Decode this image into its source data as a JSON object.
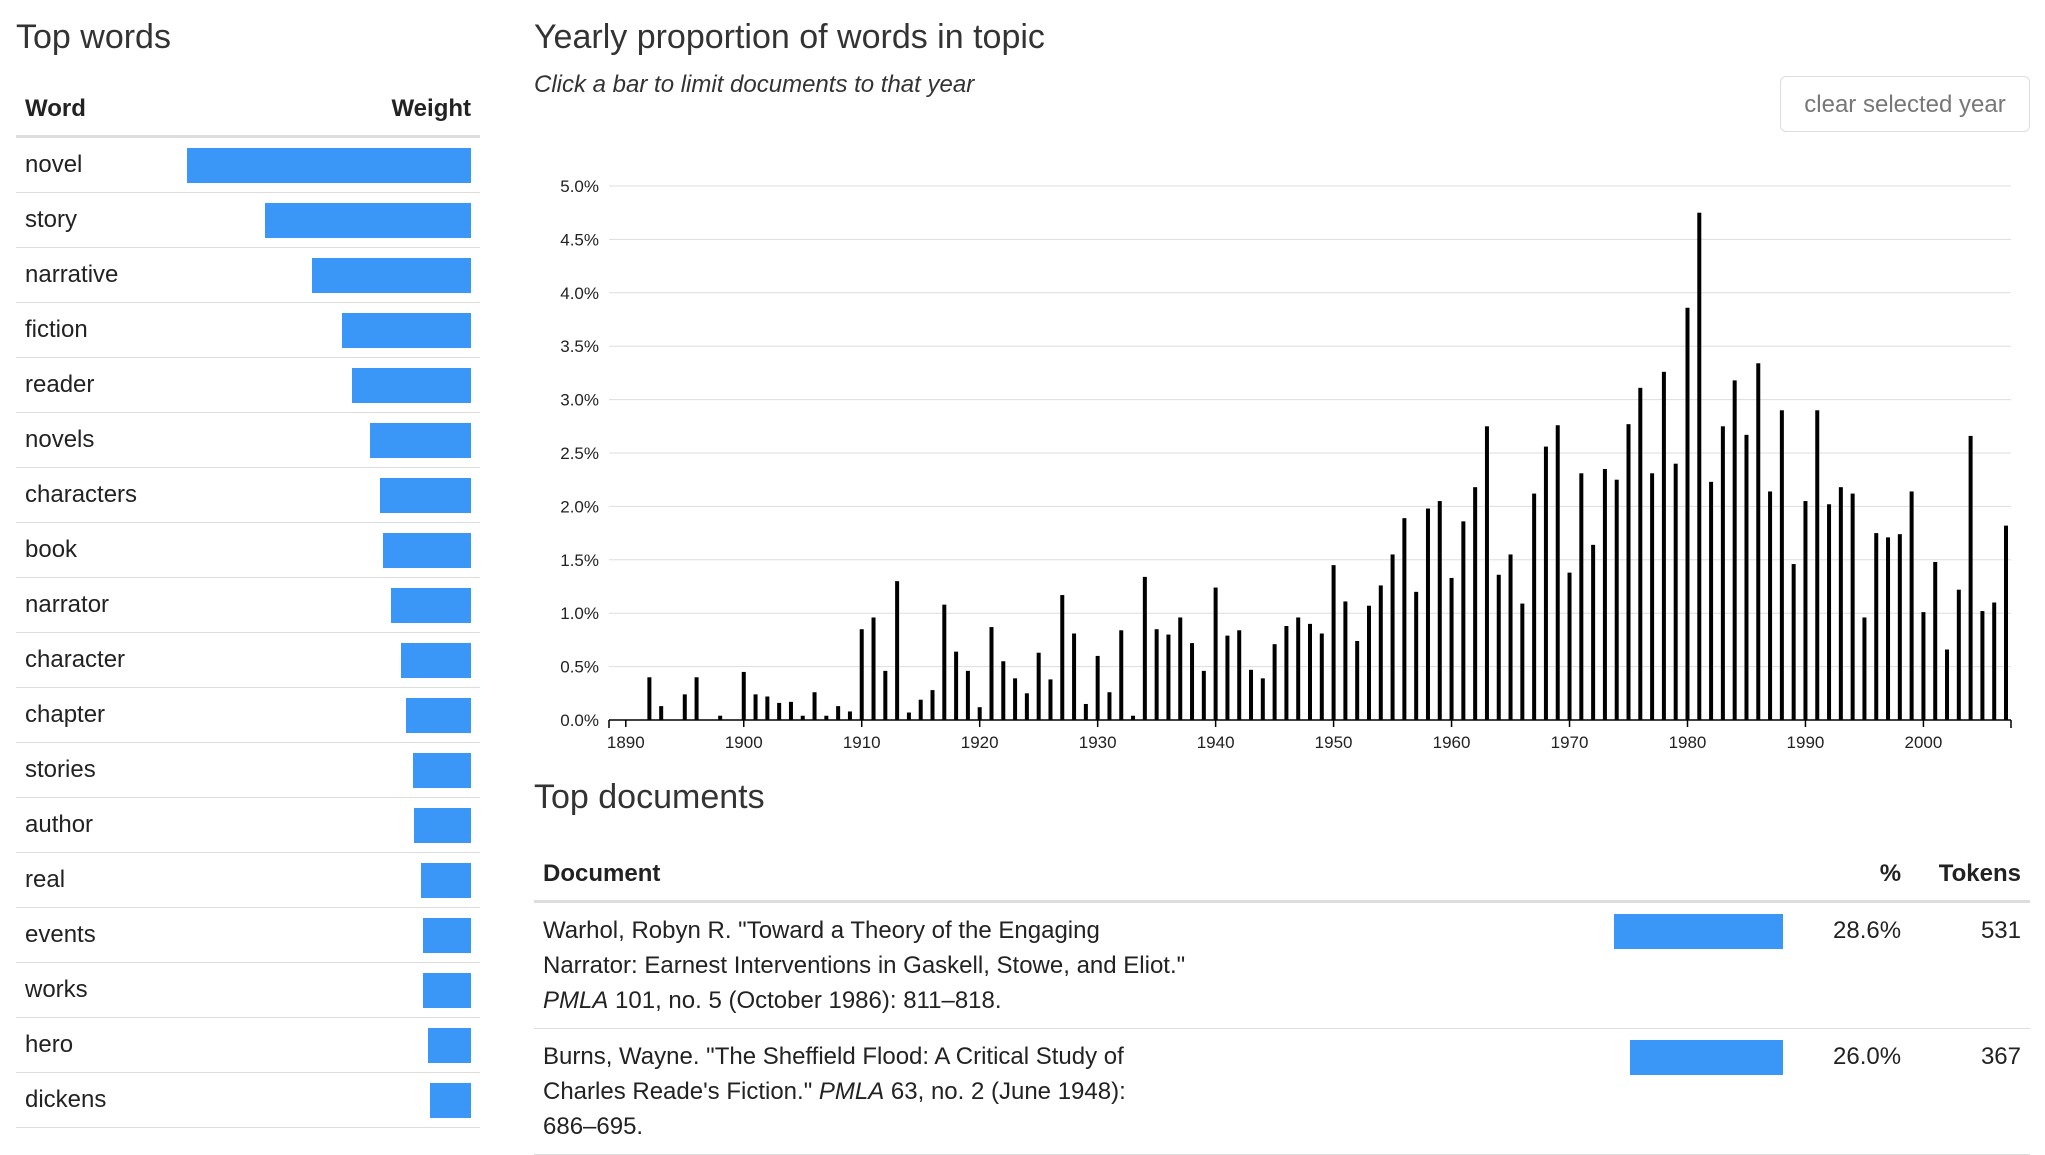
{
  "top_words": {
    "title": "Top words",
    "col_word": "Word",
    "col_weight": "Weight",
    "rows": [
      {
        "word": "novel",
        "weight": 1.0
      },
      {
        "word": "story",
        "weight": 0.725
      },
      {
        "word": "narrative",
        "weight": 0.56
      },
      {
        "word": "fiction",
        "weight": 0.455
      },
      {
        "word": "reader",
        "weight": 0.42
      },
      {
        "word": "novels",
        "weight": 0.355
      },
      {
        "word": "characters",
        "weight": 0.32
      },
      {
        "word": "book",
        "weight": 0.31
      },
      {
        "word": "narrator",
        "weight": 0.28
      },
      {
        "word": "character",
        "weight": 0.245
      },
      {
        "word": "chapter",
        "weight": 0.23
      },
      {
        "word": "stories",
        "weight": 0.205
      },
      {
        "word": "author",
        "weight": 0.2
      },
      {
        "word": "real",
        "weight": 0.175
      },
      {
        "word": "events",
        "weight": 0.17
      },
      {
        "word": "works",
        "weight": 0.17
      },
      {
        "word": "hero",
        "weight": 0.15
      },
      {
        "word": "dickens",
        "weight": 0.145
      }
    ]
  },
  "yearly": {
    "title": "Yearly proportion of words in topic",
    "subtitle": "Click a bar to limit documents to that year",
    "clear_button": "clear selected year"
  },
  "chart_data": {
    "type": "bar",
    "ylabel": "",
    "xlabel": "",
    "ylim": [
      0,
      0.05
    ],
    "y_ticks": [
      "0.0%",
      "0.5%",
      "1.0%",
      "1.5%",
      "2.0%",
      "2.5%",
      "3.0%",
      "3.5%",
      "4.0%",
      "4.5%",
      "5.0%"
    ],
    "x_ticks": [
      "1890",
      "1900",
      "1910",
      "1920",
      "1930",
      "1940",
      "1950",
      "1960",
      "1970",
      "1980",
      "1990",
      "2000"
    ],
    "grid": true,
    "series": [
      {
        "x": [
          1889,
          1890,
          1891,
          1892,
          1893,
          1894,
          1895,
          1896,
          1897,
          1898,
          1899,
          1900,
          1901,
          1902,
          1903,
          1904,
          1905,
          1906,
          1907,
          1908,
          1909,
          1910,
          1911,
          1912,
          1913,
          1914,
          1915,
          1916,
          1917,
          1918,
          1919,
          1920,
          1921,
          1922,
          1923,
          1924,
          1925,
          1926,
          1927,
          1928,
          1929,
          1930,
          1931,
          1932,
          1933,
          1934,
          1935,
          1936,
          1937,
          1938,
          1939,
          1940,
          1941,
          1942,
          1943,
          1944,
          1945,
          1946,
          1947,
          1948,
          1949,
          1950,
          1951,
          1952,
          1953,
          1954,
          1955,
          1956,
          1957,
          1958,
          1959,
          1960,
          1961,
          1962,
          1963,
          1964,
          1965,
          1966,
          1967,
          1968,
          1969,
          1970,
          1971,
          1972,
          1973,
          1974,
          1975,
          1976,
          1977,
          1978,
          1979,
          1980,
          1981,
          1982,
          1983,
          1984,
          1985,
          1986,
          1987,
          1988,
          1989,
          1990,
          1991,
          1992,
          1993,
          1994,
          1995,
          1996,
          1997,
          1998,
          1999,
          2000,
          2001,
          2002,
          2003,
          2004,
          2005,
          2006,
          2007
        ],
        "values": [
          0,
          0,
          0,
          0.004,
          0.0013,
          0,
          0.0024,
          0.004,
          0,
          0.0004,
          0,
          0.0045,
          0.0024,
          0.0022,
          0.0016,
          0.0017,
          0.0004,
          0.0026,
          0.0004,
          0.0013,
          0.0008,
          0.0085,
          0.0096,
          0.0046,
          0.013,
          0.0007,
          0.0019,
          0.0028,
          0.0108,
          0.0064,
          0.0046,
          0.0012,
          0.0087,
          0.0055,
          0.0039,
          0.0025,
          0.0063,
          0.0038,
          0.0117,
          0.0081,
          0.0015,
          0.006,
          0.0026,
          0.0084,
          0.0004,
          0.0134,
          0.0085,
          0.008,
          0.0096,
          0.0072,
          0.0046,
          0.0124,
          0.0079,
          0.0084,
          0.0047,
          0.0039,
          0.0071,
          0.0088,
          0.0096,
          0.009,
          0.0081,
          0.0145,
          0.0111,
          0.0074,
          0.0107,
          0.0126,
          0.0155,
          0.0189,
          0.012,
          0.0198,
          0.0205,
          0.0133,
          0.0186,
          0.0218,
          0.0275,
          0.0136,
          0.0155,
          0.0109,
          0.0212,
          0.0256,
          0.0276,
          0.0138,
          0.0231,
          0.0164,
          0.0235,
          0.0225,
          0.0277,
          0.0311,
          0.0231,
          0.0326,
          0.024,
          0.0386,
          0.0475,
          0.0223,
          0.0275,
          0.0318,
          0.0267,
          0.0334,
          0.0214,
          0.029,
          0.0146,
          0.0205,
          0.029,
          0.0202,
          0.0218,
          0.0212,
          0.0096,
          0.0175,
          0.0171,
          0.0174,
          0.0214,
          0.0101,
          0.0148,
          0.0066,
          0.0122,
          0.0266,
          0.0102,
          0.011,
          0.0182
        ]
      }
    ]
  },
  "top_documents": {
    "title": "Top documents",
    "col_document": "Document",
    "col_percent": "%",
    "col_tokens": "Tokens",
    "rows": [
      {
        "line1": "Warhol, Robyn R. \"Toward a Theory of the Engaging",
        "line2": "Narrator: Earnest Interventions in Gaskell, Stowe, and Eliot.\"",
        "line3_journal": "PMLA",
        "line3_rest": " 101, no. 5 (October 1986): 811–818.",
        "percent": "28.6%",
        "pct_value": 0.286,
        "tokens": "531"
      },
      {
        "line1": "Burns, Wayne. \"The Sheffield Flood: A Critical Study of",
        "line2_pre": "Charles Reade's Fiction.\" ",
        "line2_journal": "PMLA",
        "line2_rest": " 63, no. 2 (June 1948):",
        "line3": "686–695.",
        "percent": "26.0%",
        "pct_value": 0.26,
        "tokens": "367"
      }
    ]
  }
}
